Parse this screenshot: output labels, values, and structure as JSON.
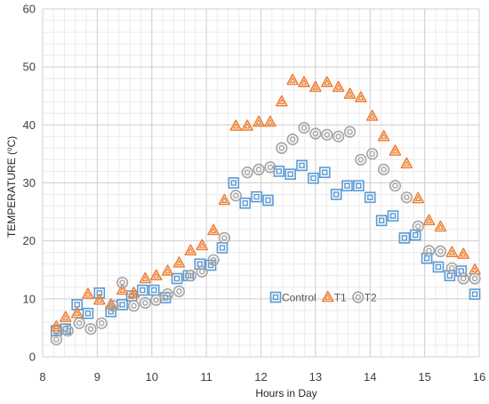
{
  "chart_data": {
    "type": "scatter",
    "xlabel": "Hours in Day",
    "ylabel_main": "TEMPERATURE (",
    "ylabel_deg": "o",
    "ylabel_unit": "C)",
    "xlim": [
      8,
      16
    ],
    "ylim": [
      0,
      60
    ],
    "x_ticks": [
      8,
      9,
      10,
      11,
      12,
      13,
      14,
      15,
      16
    ],
    "y_ticks": [
      0,
      10,
      20,
      30,
      40,
      50,
      60
    ],
    "x_tick_labels": [
      "8",
      "9",
      "10",
      "11",
      "12",
      "13",
      "14",
      "15",
      "16"
    ],
    "y_tick_labels": [
      "0",
      "10",
      "20",
      "30",
      "40",
      "50",
      "60"
    ],
    "grid": {
      "major": true,
      "minor_x": true,
      "minor_y": true
    },
    "legend_position": "center-right",
    "series": [
      {
        "name": "Control",
        "marker": "square",
        "color": "#5b9bd5",
        "x": [
          8.25,
          8.42,
          8.63,
          8.83,
          9.04,
          9.25,
          9.46,
          9.63,
          9.83,
          10.04,
          10.25,
          10.46,
          10.67,
          10.88,
          11.08,
          11.29,
          11.5,
          11.71,
          11.92,
          12.13,
          12.33,
          12.54,
          12.75,
          12.96,
          13.17,
          13.38,
          13.58,
          13.79,
          14.0,
          14.21,
          14.42,
          14.63,
          14.83,
          15.04,
          15.25,
          15.46,
          15.67,
          15.92
        ],
        "y": [
          4.5,
          4.8,
          9.0,
          7.5,
          11.0,
          7.8,
          9.0,
          10.5,
          11.5,
          11.5,
          10.2,
          13.5,
          14.0,
          16.0,
          15.8,
          18.8,
          30.0,
          26.5,
          27.6,
          27.0,
          32.0,
          31.5,
          33.0,
          30.8,
          31.8,
          28.0,
          29.5,
          29.5,
          27.5,
          23.5,
          24.3,
          20.5,
          21.0,
          17.0,
          15.5,
          14.0,
          14.8,
          10.8
        ]
      },
      {
        "name": "T1",
        "marker": "triangle",
        "color": "#ed7d31",
        "x": [
          8.25,
          8.42,
          8.63,
          8.83,
          9.04,
          9.25,
          9.46,
          9.67,
          9.88,
          10.08,
          10.29,
          10.5,
          10.71,
          10.92,
          11.13,
          11.33,
          11.54,
          11.75,
          11.96,
          12.17,
          12.38,
          12.58,
          12.79,
          13.0,
          13.21,
          13.42,
          13.63,
          13.83,
          14.04,
          14.25,
          14.46,
          14.67,
          14.88,
          15.08,
          15.29,
          15.5,
          15.71,
          15.92
        ],
        "y": [
          5.2,
          6.8,
          7.5,
          10.8,
          9.8,
          9.0,
          11.5,
          11.0,
          13.5,
          14.0,
          14.8,
          16.2,
          18.3,
          19.2,
          21.8,
          27.0,
          39.8,
          39.8,
          40.5,
          40.5,
          44.0,
          47.7,
          47.3,
          46.5,
          47.3,
          46.5,
          45.3,
          44.7,
          41.5,
          38.0,
          35.5,
          33.3,
          27.3,
          23.5,
          22.4,
          18.0,
          17.7,
          15.0
        ]
      },
      {
        "name": "T2",
        "marker": "circle",
        "color": "#a5a5a5",
        "x": [
          8.25,
          8.46,
          8.67,
          8.88,
          9.08,
          9.29,
          9.46,
          9.67,
          9.88,
          10.08,
          10.29,
          10.5,
          10.71,
          10.92,
          11.13,
          11.33,
          11.54,
          11.75,
          11.96,
          12.17,
          12.38,
          12.58,
          12.79,
          13.0,
          13.21,
          13.42,
          13.63,
          13.83,
          14.04,
          14.25,
          14.46,
          14.67,
          14.88,
          15.08,
          15.29,
          15.5,
          15.71,
          15.92
        ],
        "y": [
          3.0,
          4.5,
          5.8,
          4.8,
          5.8,
          8.8,
          12.8,
          8.8,
          9.3,
          9.8,
          10.8,
          11.3,
          14.0,
          14.7,
          16.7,
          20.5,
          27.8,
          31.8,
          32.3,
          32.7,
          36.0,
          37.5,
          39.5,
          38.5,
          38.3,
          38.0,
          38.8,
          34.0,
          35.0,
          32.3,
          29.5,
          27.5,
          22.5,
          18.3,
          18.2,
          15.3,
          13.5,
          13.5
        ]
      }
    ]
  }
}
